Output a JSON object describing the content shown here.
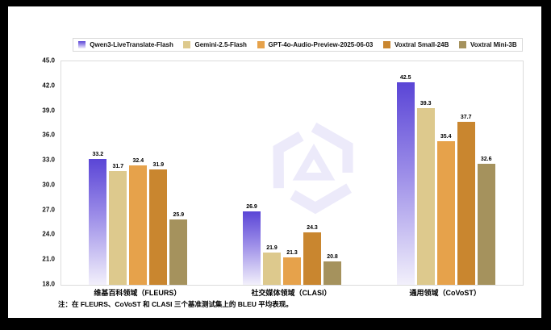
{
  "note": "注：在 FLEURS、CoVoST 和 CLASI 三个基准测试集上的 BLEU 平均表现。",
  "chart_data": {
    "type": "bar",
    "title": "",
    "xlabel": "",
    "ylabel": "",
    "categories": [
      "维基百科领域（FLEURS）",
      "社交媒体领域（CLASI）",
      "通用领域（CoVoST）"
    ],
    "series": [
      {
        "name": "Qwen3-LiveTranslate-Flash",
        "values": [
          33.2,
          26.9,
          42.5
        ],
        "gradient": true,
        "gradient_top": "#5a45d6",
        "gradient_mid": "#9c8de8",
        "gradient_bottom": "#f2f0fb"
      },
      {
        "name": "Gemini-2.5-Flash",
        "values": [
          31.7,
          21.9,
          39.3
        ],
        "color": "#ddc98d"
      },
      {
        "name": "GPT-4o-Audio-Preview-2025-06-03",
        "values": [
          32.4,
          21.3,
          35.4
        ],
        "color": "#e6a24b"
      },
      {
        "name": "Voxtral Small-24B",
        "values": [
          31.9,
          24.3,
          37.7
        ],
        "color": "#c9862f"
      },
      {
        "name": "Voxtral Mini-3B",
        "values": [
          25.9,
          20.8,
          32.6
        ],
        "color": "#a5925d"
      }
    ],
    "ylim": [
      18.0,
      45.0
    ],
    "ytick_step": 3.0,
    "yticks": [
      "45.0",
      "42.0",
      "39.0",
      "36.0",
      "33.0",
      "30.0",
      "27.0",
      "24.0",
      "21.0",
      "18.0"
    ],
    "grid": false,
    "legend_position": "top",
    "value_labels": true,
    "watermark_color": "#eceafa"
  }
}
